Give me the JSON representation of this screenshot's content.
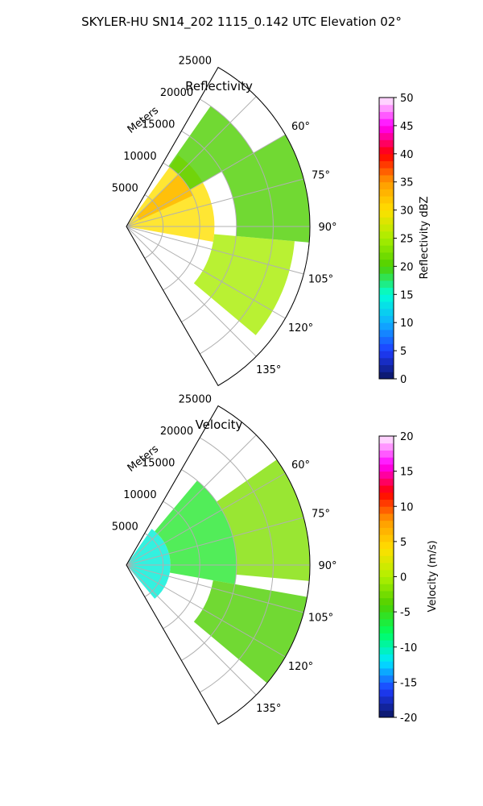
{
  "figure": {
    "suptitle": "SKYLER-HU  SN14_202  1115_0.142 UTC Elevation 02°"
  },
  "chart_data": [
    {
      "type": "heatmap",
      "title": "Reflectivity",
      "projection": "polar sector",
      "theta_range_deg": [
        30,
        150
      ],
      "r_max_m": 25000,
      "r_label": "Meters",
      "r_ticks": [
        5000,
        10000,
        15000,
        20000,
        25000
      ],
      "theta_ticks": [
        60,
        75,
        90,
        105,
        120,
        135
      ],
      "grid": true,
      "colorbar": {
        "label": "Reflectivity dBZ",
        "range": [
          0,
          50
        ],
        "ticks": [
          0,
          5,
          10,
          15,
          20,
          25,
          30,
          35,
          40,
          45,
          50
        ],
        "colors": [
          "#0a1560",
          "#1e3cff",
          "#0fb0ff",
          "#00ffd8",
          "#4ed000",
          "#a8ee00",
          "#ffe000",
          "#ff9a00",
          "#ff0000",
          "#ff00ff",
          "#fff0ff"
        ]
      },
      "values_estimated": [
        {
          "theta_deg": [
            36,
            100
          ],
          "r_m": [
            0,
            12000
          ],
          "value": 30
        },
        {
          "theta_deg": [
            45,
            65
          ],
          "r_m": [
            2000,
            10000
          ],
          "value": 33
        },
        {
          "theta_deg": [
            35,
            60
          ],
          "r_m": [
            10000,
            20000
          ],
          "value": 20
        },
        {
          "theta_deg": [
            95,
            130
          ],
          "r_m": [
            12000,
            23000
          ],
          "value": 25
        },
        {
          "theta_deg": [
            60,
            95
          ],
          "r_m": [
            15000,
            25000
          ],
          "value": 20
        }
      ]
    },
    {
      "type": "heatmap",
      "title": "Velocity",
      "projection": "polar sector",
      "theta_range_deg": [
        30,
        150
      ],
      "r_max_m": 25000,
      "r_label": "Meters",
      "r_ticks": [
        5000,
        10000,
        15000,
        20000,
        25000
      ],
      "theta_ticks": [
        60,
        75,
        90,
        105,
        120,
        135
      ],
      "grid": true,
      "colorbar": {
        "label": "Velocity (m/s)",
        "range": [
          -20,
          20
        ],
        "ticks": [
          -20,
          -15,
          -10,
          -5,
          0,
          5,
          10,
          15,
          20
        ],
        "colors": [
          "#0a1560",
          "#1e3cff",
          "#00e8ff",
          "#00ff60",
          "#4ed000",
          "#b0f000",
          "#ffe000",
          "#ff9a00",
          "#ff0000",
          "#ff00ff",
          "#fff0ff"
        ]
      },
      "values_estimated": [
        {
          "theta_deg": [
            35,
            140
          ],
          "r_m": [
            0,
            6000
          ],
          "value": -11
        },
        {
          "theta_deg": [
            40,
            100
          ],
          "r_m": [
            6000,
            15000
          ],
          "value": -6
        },
        {
          "theta_deg": [
            55,
            95
          ],
          "r_m": [
            15000,
            25000
          ],
          "value": -2
        },
        {
          "theta_deg": [
            100,
            130
          ],
          "r_m": [
            12000,
            25000
          ],
          "value": -4
        }
      ]
    }
  ]
}
